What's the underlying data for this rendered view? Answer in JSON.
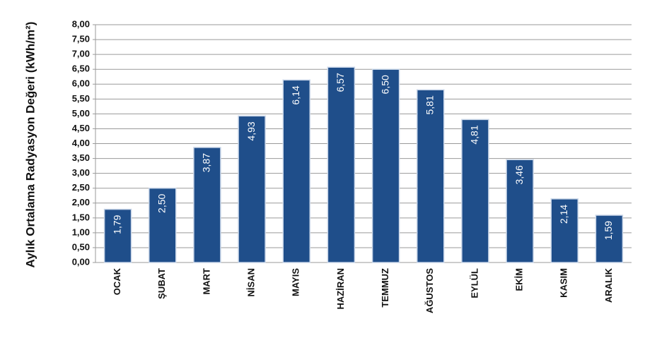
{
  "chart_data": {
    "type": "bar",
    "y_axis_label": "Aylık Ortalama Radyasyon Değeri (kWh/m²)",
    "categories": [
      "OCAK",
      "ŞUBAT",
      "MART",
      "NİSAN",
      "MAYIS",
      "HAZİRAN",
      "TEMMUZ",
      "AĞUSTOS",
      "EYLÜL",
      "EKİM",
      "KASIM",
      "ARALIK"
    ],
    "values": [
      1.79,
      2.5,
      3.87,
      4.93,
      6.14,
      6.57,
      6.5,
      5.81,
      4.81,
      3.46,
      2.14,
      1.59
    ],
    "value_labels": [
      "1,79",
      "2,50",
      "3,87",
      "4,93",
      "6,14",
      "6,57",
      "6,50",
      "5,81",
      "4,81",
      "3,46",
      "2,14",
      "1,59"
    ],
    "color": "#1f4e8a",
    "ylim": [
      0,
      8
    ],
    "yticks": [
      {
        "value": 0,
        "label": "0,00"
      },
      {
        "value": 0.5,
        "label": "0,50"
      },
      {
        "value": 1,
        "label": "1,00"
      },
      {
        "value": 1.5,
        "label": "1,50"
      },
      {
        "value": 2,
        "label": "2,00"
      },
      {
        "value": 2.5,
        "label": "2,50"
      },
      {
        "value": 3,
        "label": "3,00"
      },
      {
        "value": 3.5,
        "label": "3,50"
      },
      {
        "value": 4,
        "label": "4,00"
      },
      {
        "value": 4.5,
        "label": "4,50"
      },
      {
        "value": 5,
        "label": "5,00"
      },
      {
        "value": 5.5,
        "label": "5,50"
      },
      {
        "value": 6,
        "label": "6,00"
      },
      {
        "value": 6.5,
        "label": "6,50"
      },
      {
        "value": 7,
        "label": "7,00"
      },
      {
        "value": 7.5,
        "label": "7,50"
      },
      {
        "value": 8,
        "label": "8,00"
      }
    ],
    "grid": true
  }
}
